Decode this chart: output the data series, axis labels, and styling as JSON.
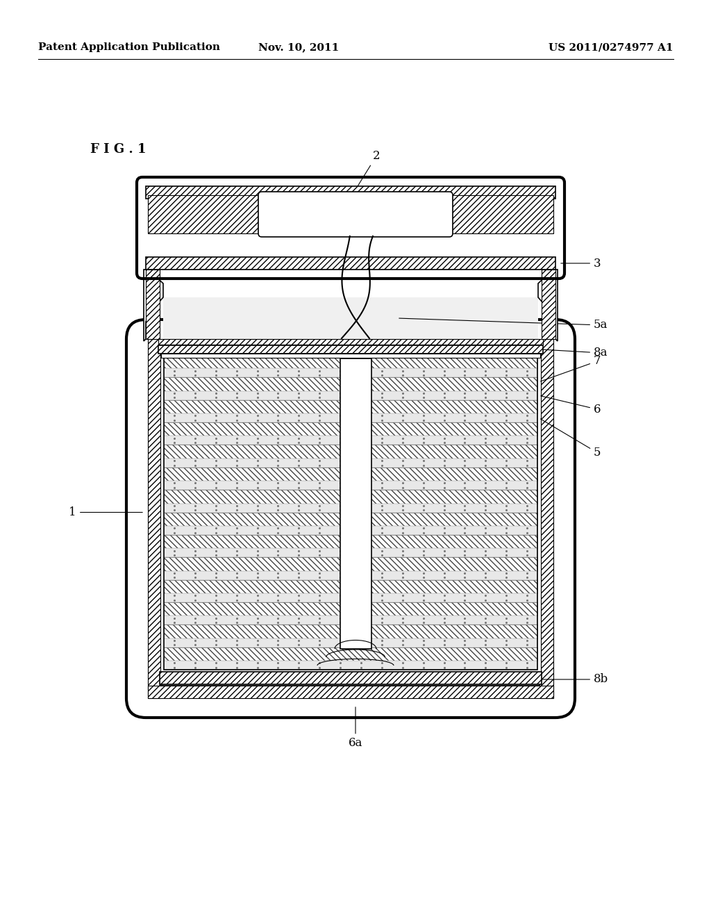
{
  "bg_color": "#ffffff",
  "header_left": "Patent Application Publication",
  "header_mid": "Nov. 10, 2011",
  "header_right": "US 2011/0274977 A1",
  "fig_label": "F I G . 1",
  "line_color": "#000000",
  "figsize": [
    10.24,
    13.2
  ],
  "dpi": 100
}
